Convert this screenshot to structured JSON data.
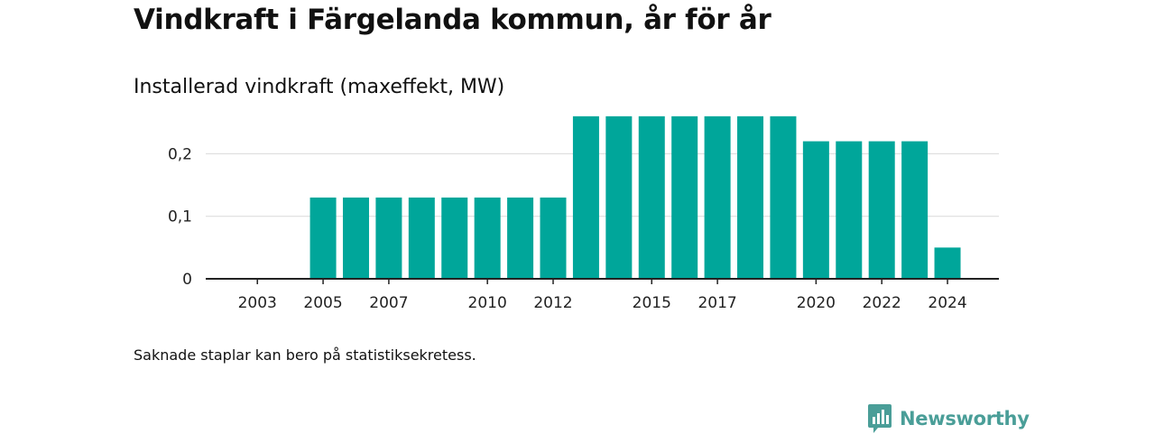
{
  "title": "Vindkraft i Färgelanda kommun, år för år",
  "subtitle": "Installerad vindkraft (maxeffekt, MW)",
  "footnote": "Saknade staplar kan bero på statistiksekretess.",
  "brand": {
    "name": "Newsworthy",
    "color": "#4a9e98",
    "icon": "bar-chart-speech-bubble-icon"
  },
  "colors": {
    "bar": "#00a69a",
    "grid": "#d9d9d9",
    "axis": "#222222"
  },
  "chart_data": {
    "type": "bar",
    "title": "Vindkraft i Färgelanda kommun, år för år",
    "subtitle": "Installerad vindkraft (maxeffekt, MW)",
    "xlabel": "",
    "ylabel": "",
    "categories": [
      2002,
      2003,
      2004,
      2005,
      2006,
      2007,
      2008,
      2009,
      2010,
      2011,
      2012,
      2013,
      2014,
      2015,
      2016,
      2017,
      2018,
      2019,
      2020,
      2021,
      2022,
      2023,
      2024
    ],
    "values": [
      null,
      null,
      null,
      0.13,
      0.13,
      0.13,
      0.13,
      0.13,
      0.13,
      0.13,
      0.13,
      0.26,
      0.26,
      0.26,
      0.26,
      0.26,
      0.26,
      0.26,
      0.22,
      0.22,
      0.22,
      0.22,
      0.05
    ],
    "x_tick_labels": [
      "2003",
      "2005",
      "2007",
      "2010",
      "2012",
      "2015",
      "2017",
      "2020",
      "2022",
      "2024"
    ],
    "y_ticks": [
      0,
      0.1,
      0.2
    ],
    "y_tick_labels": [
      "0",
      "0,1",
      "0,2"
    ],
    "ylim": [
      0,
      0.28
    ],
    "grid": true,
    "legend": "none"
  }
}
